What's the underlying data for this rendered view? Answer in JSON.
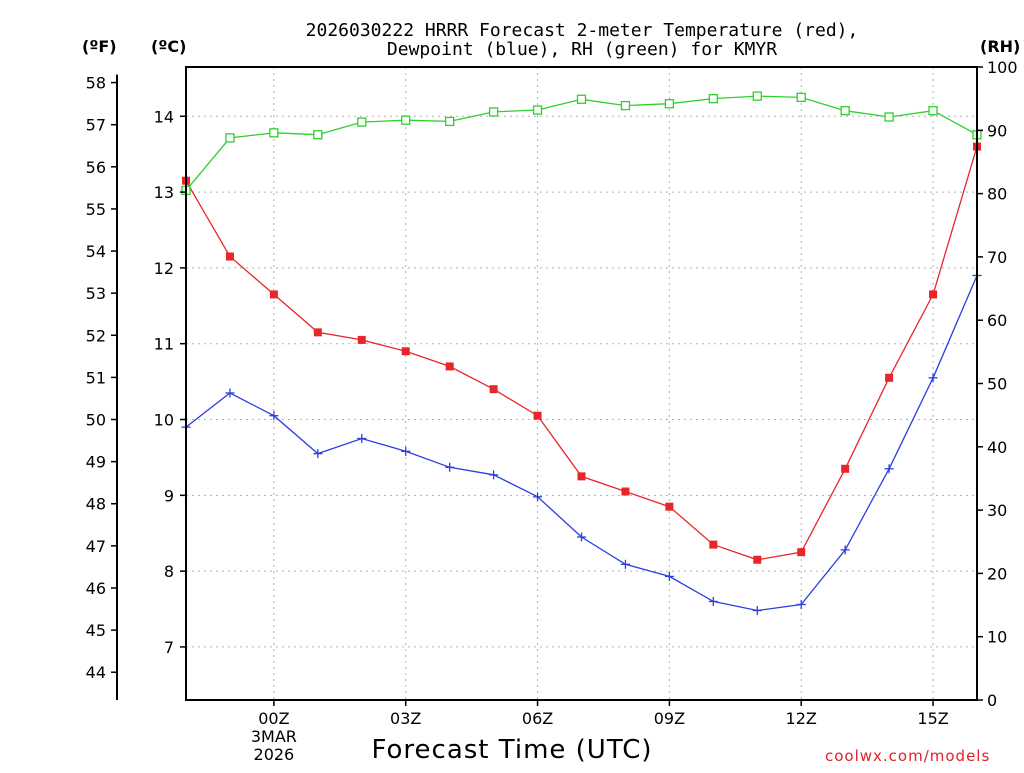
{
  "chart_data": {
    "type": "line",
    "title_line1": "2026030222 HRRR Forecast 2-meter Temperature (red),",
    "title_line2": "Dewpoint (blue), RH (green) for KMYR",
    "xlabel": "Forecast Time (UTC)",
    "credit": "coolwx.com/models",
    "units": {
      "fahrenheit": "(ºF)",
      "celsius": "(ºC)",
      "rh": "(RH)"
    },
    "x_hours": [
      -2,
      -1,
      0,
      1,
      2,
      3,
      4,
      5,
      6,
      7,
      8,
      9,
      10,
      11,
      12,
      13,
      14,
      15,
      16
    ],
    "x_ticks": [
      {
        "hour": 0,
        "label": "00Z",
        "sub1": "3MAR",
        "sub2": "2026"
      },
      {
        "hour": 3,
        "label": "03Z"
      },
      {
        "hour": 6,
        "label": "06Z"
      },
      {
        "hour": 9,
        "label": "09Z"
      },
      {
        "hour": 12,
        "label": "12Z"
      },
      {
        "hour": 15,
        "label": "15Z"
      }
    ],
    "celsius_range": [
      6.3,
      14.65
    ],
    "celsius_ticks": [
      7,
      8,
      9,
      10,
      11,
      12,
      13,
      14
    ],
    "fahrenheit_ticks": [
      44,
      45,
      46,
      47,
      48,
      49,
      50,
      51,
      52,
      53,
      54,
      55,
      56,
      57,
      58
    ],
    "rh_range": [
      0,
      100
    ],
    "rh_ticks": [
      0,
      10,
      20,
      30,
      40,
      50,
      60,
      70,
      80,
      90,
      100
    ],
    "series": [
      {
        "name": "Temperature",
        "axis": "celsius",
        "color": "#e8262a",
        "marker": "filled-square",
        "values": [
          13.15,
          12.15,
          11.65,
          11.15,
          11.05,
          10.9,
          10.7,
          10.4,
          10.05,
          9.25,
          9.05,
          8.85,
          8.35,
          8.15,
          8.25,
          9.35,
          10.55,
          11.65,
          13.6
        ]
      },
      {
        "name": "Dewpoint",
        "axis": "celsius",
        "color": "#2a3ee0",
        "marker": "plus",
        "values": [
          9.9,
          10.35,
          10.05,
          9.55,
          9.75,
          9.58,
          9.37,
          9.27,
          8.98,
          8.45,
          8.09,
          7.93,
          7.6,
          7.48,
          7.56,
          8.28,
          9.35,
          10.55,
          11.9
        ]
      },
      {
        "name": "RH",
        "axis": "rh",
        "color": "#2ed02e",
        "marker": "open-square",
        "values": [
          80.5,
          88.8,
          89.6,
          89.3,
          91.3,
          91.6,
          91.4,
          92.9,
          93.2,
          94.9,
          93.9,
          94.2,
          95.0,
          95.4,
          95.2,
          93.1,
          92.1,
          93.1,
          89.3
        ]
      }
    ]
  }
}
